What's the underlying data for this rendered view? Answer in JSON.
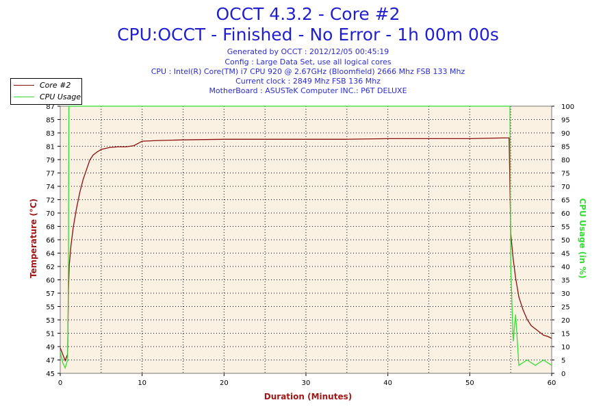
{
  "header": {
    "title": "OCCT 4.3.2 - Core #2",
    "subtitle": "CPU:OCCT - Finished - No Error - 1h 00m 00s",
    "generated": "Generated by OCCT : 2012/12/05 00:45:19",
    "config": "Config : Large Data Set, use all logical cores",
    "cpu": "CPU : Intel(R) Core(TM) i7 CPU 920 @ 2.67GHz (Bloomfield) 2666 Mhz FSB 133 Mhz",
    "clock": "Current clock : 2849 Mhz FSB 136 Mhz",
    "motherboard": "MotherBoard : ASUSTeK Computer INC.: P6T DELUXE"
  },
  "legend": [
    {
      "label": "Core #2",
      "color": "#8b0d0d"
    },
    {
      "label": "CPU Usage",
      "color": "#33dd33"
    }
  ],
  "colors": {
    "plot_bg": "#fbf1e2",
    "grid": "#000000",
    "temperature": "#8b0d0d",
    "cpu_usage": "#33dd33"
  },
  "chart_data": {
    "type": "line",
    "xlabel": "Duration (Minutes)",
    "ylabel": "Temperature (°C)",
    "y2label": "CPU Usage (in %)",
    "xlim": [
      0,
      60
    ],
    "ylim": [
      45,
      87
    ],
    "y2lim": [
      0,
      100
    ],
    "xticks": [
      0,
      10,
      20,
      30,
      40,
      50,
      60
    ],
    "yticks": [
      45,
      47,
      49,
      51,
      53,
      55,
      57,
      60,
      62,
      64,
      66,
      68,
      70,
      72,
      74,
      77,
      79,
      81,
      83,
      85,
      87
    ],
    "y2ticks": [
      0,
      5,
      10,
      15,
      20,
      25,
      30,
      35,
      40,
      45,
      50,
      55,
      60,
      65,
      70,
      75,
      80,
      85,
      90,
      95,
      100
    ],
    "grid": true,
    "legend_position": "top-left",
    "series": [
      {
        "name": "Core #2",
        "axis": "left",
        "x": [
          0,
          0.3,
          0.6,
          0.9,
          1.0,
          1.1,
          1.3,
          1.6,
          2.0,
          2.4,
          2.8,
          3.2,
          3.6,
          4.0,
          4.5,
          5.0,
          6.0,
          7.0,
          8.0,
          9.0,
          10.0,
          12.0,
          15.0,
          20.0,
          25.0,
          30.0,
          35.0,
          40.0,
          45.0,
          50.0,
          54.0,
          54.8,
          55.0,
          55.3,
          55.6,
          56.0,
          56.5,
          57.0,
          57.5,
          58.0,
          58.5,
          59.0,
          59.5,
          60.0
        ],
        "values": [
          49,
          48,
          47,
          48,
          58,
          62,
          65,
          68,
          71,
          73.5,
          75.5,
          77,
          78.5,
          79.3,
          79.8,
          80.2,
          80.5,
          80.6,
          80.6,
          80.8,
          81.5,
          81.6,
          81.7,
          81.8,
          81.8,
          81.8,
          81.8,
          81.9,
          81.9,
          81.9,
          82.0,
          82.0,
          67.0,
          63.0,
          60.0,
          57.0,
          55.0,
          53.5,
          52.5,
          52.0,
          51.5,
          51.0,
          50.8,
          50.5
        ]
      },
      {
        "name": "CPU Usage",
        "axis": "right",
        "x": [
          0,
          0.3,
          0.6,
          0.9,
          1.0,
          1.05,
          10,
          20,
          30,
          40,
          50,
          54.9,
          55.0,
          55.3,
          55.6,
          56.0,
          57.0,
          58.0,
          59.0,
          60.0
        ],
        "values": [
          8,
          4,
          2,
          5,
          40,
          100,
          100,
          100,
          100,
          100,
          100,
          100,
          40,
          12,
          22,
          3,
          5,
          3,
          5,
          3
        ]
      }
    ]
  }
}
